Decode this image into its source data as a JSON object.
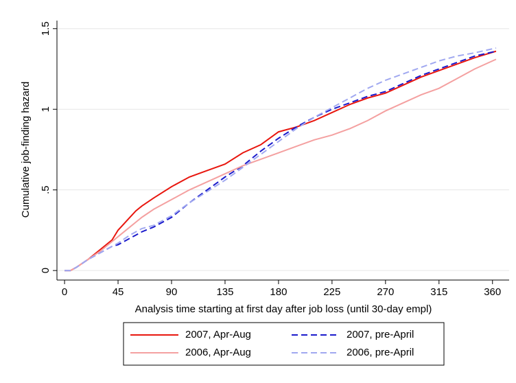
{
  "chart_data": {
    "type": "line",
    "x_label": "Analysis time starting at first day after job loss (until 30-day empl)",
    "y_label": "Cumulative job-finding hazard",
    "x": [
      0,
      5,
      10,
      20,
      30,
      40,
      45,
      55,
      60,
      65,
      75,
      90,
      105,
      120,
      135,
      150,
      165,
      180,
      195,
      210,
      225,
      240,
      255,
      270,
      285,
      300,
      315,
      330,
      345,
      363
    ],
    "series": [
      {
        "name": "2007, Apr-Aug",
        "color": "#e8160e",
        "dashed": false,
        "values": [
          0,
          0,
          0.02,
          0.07,
          0.13,
          0.19,
          0.25,
          0.33,
          0.37,
          0.4,
          0.45,
          0.52,
          0.58,
          0.62,
          0.66,
          0.73,
          0.78,
          0.86,
          0.89,
          0.93,
          0.98,
          1.03,
          1.07,
          1.1,
          1.15,
          1.2,
          1.24,
          1.28,
          1.32,
          1.36
        ]
      },
      {
        "name": "2007, pre-April",
        "color": "#1a1acc",
        "dashed": true,
        "values": [
          0,
          0,
          0.02,
          0.07,
          0.11,
          0.15,
          0.16,
          0.2,
          0.22,
          0.24,
          0.27,
          0.33,
          0.42,
          0.5,
          0.58,
          0.65,
          0.74,
          0.82,
          0.89,
          0.95,
          1.0,
          1.04,
          1.08,
          1.11,
          1.16,
          1.21,
          1.25,
          1.29,
          1.33,
          1.36
        ]
      },
      {
        "name": "2006, Apr-Aug",
        "color": "#f4a0a0",
        "dashed": false,
        "values": [
          0,
          0,
          0.02,
          0.07,
          0.12,
          0.18,
          0.21,
          0.27,
          0.3,
          0.33,
          0.38,
          0.44,
          0.5,
          0.55,
          0.6,
          0.65,
          0.69,
          0.73,
          0.77,
          0.81,
          0.84,
          0.88,
          0.93,
          0.99,
          1.04,
          1.09,
          1.13,
          1.19,
          1.25,
          1.31
        ]
      },
      {
        "name": "2006, pre-April",
        "color": "#a0a8f0",
        "dashed": true,
        "values": [
          0,
          0,
          0.02,
          0.07,
          0.11,
          0.15,
          0.17,
          0.22,
          0.24,
          0.26,
          0.28,
          0.34,
          0.42,
          0.49,
          0.56,
          0.64,
          0.72,
          0.8,
          0.88,
          0.95,
          1.01,
          1.07,
          1.13,
          1.18,
          1.22,
          1.26,
          1.3,
          1.33,
          1.35,
          1.38
        ]
      }
    ],
    "xlim": [
      -6.4,
      374
    ],
    "ylim": [
      -0.059,
      1.55
    ],
    "xticks": [
      0,
      45,
      90,
      135,
      180,
      225,
      270,
      315,
      360
    ],
    "yticks": [
      0,
      {
        "value": 0.5,
        "label": ".5"
      },
      1,
      1.5
    ],
    "grid": true,
    "legend": "bottom"
  }
}
